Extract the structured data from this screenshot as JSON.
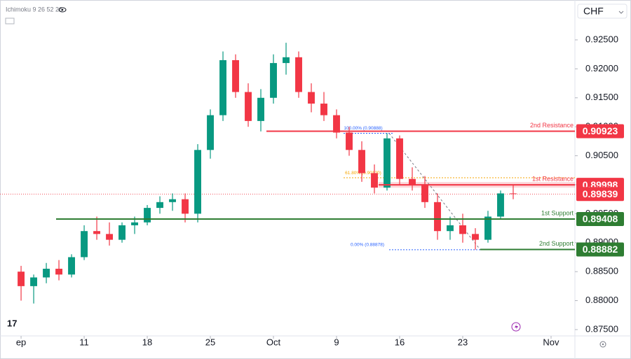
{
  "chart_data": {
    "type": "candlestick",
    "indicator": "Ichimoku 9 26 52 26",
    "symbol": "CHF",
    "up_color": "#089981",
    "down_color": "#f23645",
    "x": [
      0,
      1,
      2,
      3,
      4,
      5,
      6,
      7,
      8,
      9,
      10,
      11,
      12,
      13,
      14,
      15,
      16,
      17,
      18,
      19,
      20,
      21,
      22,
      23,
      24,
      25,
      26,
      27,
      28,
      29,
      30,
      31,
      32,
      33,
      34,
      35,
      36,
      37,
      38,
      39
    ],
    "open": [
      0.885,
      0.8825,
      0.884,
      0.8855,
      0.8845,
      0.8875,
      0.892,
      0.8915,
      0.8905,
      0.893,
      0.8935,
      0.896,
      0.897,
      0.8975,
      0.895,
      0.906,
      0.912,
      0.9215,
      0.916,
      0.911,
      0.915,
      0.921,
      0.922,
      0.916,
      0.914,
      0.912,
      0.909,
      0.906,
      0.902,
      0.8995,
      0.908,
      0.901,
      0.9,
      0.897,
      0.892,
      0.893,
      0.8915,
      0.8905,
      0.8945,
      0.8985
    ],
    "high": [
      0.886,
      0.8845,
      0.8865,
      0.887,
      0.888,
      0.893,
      0.8945,
      0.8935,
      0.8935,
      0.8945,
      0.8965,
      0.898,
      0.8985,
      0.8985,
      0.907,
      0.913,
      0.923,
      0.9225,
      0.9175,
      0.9165,
      0.9225,
      0.9245,
      0.923,
      0.9175,
      0.916,
      0.913,
      0.91,
      0.9075,
      0.9035,
      0.9089,
      0.9085,
      0.903,
      0.9015,
      0.8985,
      0.8945,
      0.895,
      0.8925,
      0.8955,
      0.899,
      0.9
    ],
    "low": [
      0.88,
      0.8795,
      0.883,
      0.8835,
      0.884,
      0.887,
      0.8905,
      0.8895,
      0.89,
      0.8915,
      0.893,
      0.895,
      0.8955,
      0.8935,
      0.8935,
      0.9045,
      0.911,
      0.915,
      0.91,
      0.9092,
      0.914,
      0.919,
      0.915,
      0.9125,
      0.911,
      0.908,
      0.905,
      0.9005,
      0.8985,
      0.899,
      0.9,
      0.899,
      0.896,
      0.8905,
      0.8905,
      0.89,
      0.8888,
      0.89,
      0.894,
      0.8975
    ],
    "close": [
      0.8825,
      0.884,
      0.8855,
      0.8845,
      0.8875,
      0.892,
      0.8915,
      0.8905,
      0.893,
      0.8935,
      0.896,
      0.897,
      0.8975,
      0.895,
      0.906,
      0.912,
      0.9215,
      0.916,
      0.911,
      0.915,
      0.921,
      0.922,
      0.916,
      0.914,
      0.912,
      0.909,
      0.906,
      0.902,
      0.8995,
      0.908,
      0.901,
      0.9,
      0.897,
      0.892,
      0.893,
      0.8915,
      0.8905,
      0.8945,
      0.8985,
      0.8984
    ],
    "xlim": [
      -1.67,
      43.89
    ],
    "xticks": [
      {
        "value": 0,
        "label": "ep"
      },
      {
        "value": 5,
        "label": "11"
      },
      {
        "value": 10,
        "label": "18"
      },
      {
        "value": 15,
        "label": "25"
      },
      {
        "value": 20,
        "label": "Oct"
      },
      {
        "value": 25,
        "label": "9"
      },
      {
        "value": 30,
        "label": "16"
      },
      {
        "value": 35,
        "label": "23"
      },
      {
        "value": 42,
        "label": "Nov"
      }
    ],
    "ylim": [
      0.87391,
      0.93188
    ],
    "yticks": [
      {
        "value": 0.875,
        "label": "0.87500"
      },
      {
        "value": 0.88,
        "label": "0.88000"
      },
      {
        "value": 0.885,
        "label": "0.88500"
      },
      {
        "value": 0.89,
        "label": "0.89000"
      },
      {
        "value": 0.895,
        "label": "0.89500"
      },
      {
        "value": 0.9,
        "label": "0.90000"
      },
      {
        "value": 0.905,
        "label": "0.90500"
      },
      {
        "value": 0.91,
        "label": "0.91000"
      },
      {
        "value": 0.915,
        "label": "0.91500"
      },
      {
        "value": 0.92,
        "label": "0.92000"
      },
      {
        "value": 0.925,
        "label": "0.92500"
      }
    ],
    "last_price": 0.89839,
    "last_price_color": "#f23645",
    "levels": [
      {
        "label": "2nd Resistance",
        "value": 0.90923,
        "color": "#f23645"
      },
      {
        "label": "1st Resistance",
        "value": 0.89998,
        "color": "#f23645"
      },
      {
        "label": "1st Support",
        "value": 0.89408,
        "color": "#2e7d32"
      },
      {
        "label": "2nd Support",
        "value": 0.88882,
        "color": "#2e7d32"
      }
    ],
    "fib_levels": [
      {
        "label": "100.00% (0.90888)",
        "value": 0.90888,
        "color": "#2962ff"
      },
      {
        "label": "61.80% (0.90120)",
        "value": 0.9012,
        "color": "#f7a600"
      },
      {
        "label": "0.00% (0.88878)",
        "value": 0.88878,
        "color": "#2962ff"
      }
    ]
  }
}
